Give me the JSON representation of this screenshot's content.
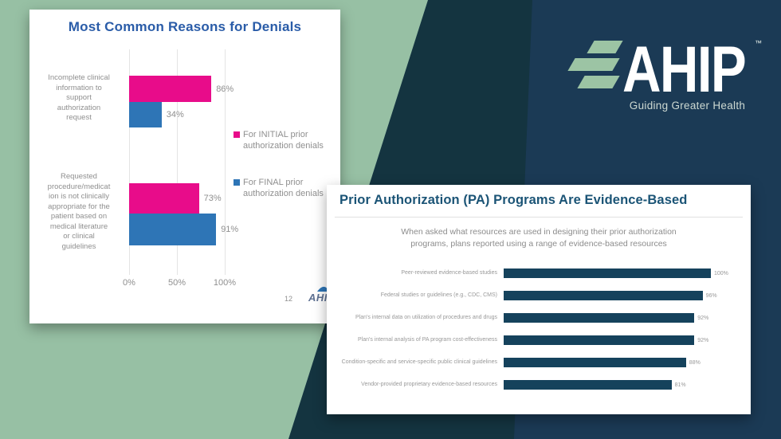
{
  "background": {
    "navy": "#1b3a55",
    "teal": "#143440",
    "sage": "#97c0a4"
  },
  "brand": {
    "logo_text": "AHIP",
    "trademark": "™",
    "tagline": "Guiding Greater Health",
    "stripe_color": "#9cc4a4"
  },
  "colors": {
    "initial_pink": "#e80c8a",
    "final_blue": "#2e75b6",
    "resource_bar_teal": "#15425c",
    "left_title_blue": "#2a5ca8",
    "right_title_blue": "#1b5476",
    "gray_text": "#8f8f8f"
  },
  "left_slide": {
    "title": "Most Common Reasons for Denials",
    "page_number": "12",
    "footer_logo_text": "AHIP",
    "x_ticks": [
      "0%",
      "50%",
      "100%"
    ],
    "legend": [
      {
        "label": "For INITIAL prior authorization denials",
        "color": "#e80c8a"
      },
      {
        "label": "For FINAL prior authorization denials",
        "color": "#2e75b6"
      }
    ],
    "groups": [
      {
        "label_lines": [
          "Incomplete clinical",
          "information to",
          "support",
          "authorization",
          "request"
        ],
        "initial": {
          "value": 86,
          "label": "86%"
        },
        "final": {
          "value": 34,
          "label": "34%"
        }
      },
      {
        "label_lines": [
          "Requested",
          "procedure/medicat",
          "ion is not clinically",
          "appropriate for the",
          "patient based on",
          "medical literature",
          "or clinical",
          "guidelines"
        ],
        "initial": {
          "value": 73,
          "label": "73%"
        },
        "final": {
          "value": 91,
          "label": "91%"
        }
      }
    ]
  },
  "right_slide": {
    "title": "Prior Authorization (PA) Programs Are Evidence-Based",
    "subtitle_lines": [
      "When asked what resources are used in designing their prior authorization",
      "programs, plans reported using a range of evidence-based resources"
    ],
    "rows": [
      {
        "label": "Peer-reviewed evidence-based studies",
        "value": 100,
        "pct": "100%"
      },
      {
        "label": "Federal studies or guidelines (e.g., CDC, CMS)",
        "value": 96,
        "pct": "96%"
      },
      {
        "label": "Plan's internal data on utilization of procedures and drugs",
        "value": 92,
        "pct": "92%"
      },
      {
        "label": "Plan's internal analysis of PA program cost-effectiveness",
        "value": 92,
        "pct": "92%"
      },
      {
        "label": "Condition-specific and service-specific public clinical guidelines",
        "value": 88,
        "pct": "88%"
      },
      {
        "label": "Vendor-provided proprietary evidence-based resources",
        "value": 81,
        "pct": "81%"
      }
    ]
  },
  "chart_data": [
    {
      "type": "bar",
      "orientation": "horizontal",
      "title": "Most Common Reasons for Denials",
      "categories": [
        "Incomplete clinical information to support authorization request",
        "Requested procedure/medication is not clinically appropriate for the patient based on medical literature or clinical guidelines"
      ],
      "series": [
        {
          "name": "For INITIAL prior authorization denials",
          "color": "#e80c8a",
          "values": [
            86,
            73
          ]
        },
        {
          "name": "For FINAL prior authorization denials",
          "color": "#2e75b6",
          "values": [
            34,
            91
          ]
        }
      ],
      "value_labels": [
        [
          "86%",
          "73%"
        ],
        [
          "34%",
          "91%"
        ]
      ],
      "xlim": [
        0,
        100
      ],
      "x_ticks": [
        "0%",
        "50%",
        "100%"
      ],
      "grid": "vertical",
      "legend_position": "right"
    },
    {
      "type": "bar",
      "orientation": "horizontal",
      "title": "Prior Authorization (PA) Programs Are Evidence-Based",
      "subtitle": "When asked what resources are used in designing their prior authorization programs, plans reported using a range of evidence-based resources",
      "categories": [
        "Peer-reviewed evidence-based studies",
        "Federal studies or guidelines (e.g., CDC, CMS)",
        "Plan's internal data on utilization of procedures and drugs",
        "Plan's internal analysis of PA program cost-effectiveness",
        "Condition-specific and service-specific public clinical guidelines",
        "Vendor-provided proprietary evidence-based resources"
      ],
      "values": [
        100,
        96,
        92,
        92,
        88,
        81
      ],
      "value_labels": [
        "100%",
        "96%",
        "92%",
        "92%",
        "88%",
        "81%"
      ],
      "bar_color": "#15425c",
      "xlim": [
        0,
        100
      ],
      "grid": "off",
      "legend_position": "none"
    }
  ]
}
